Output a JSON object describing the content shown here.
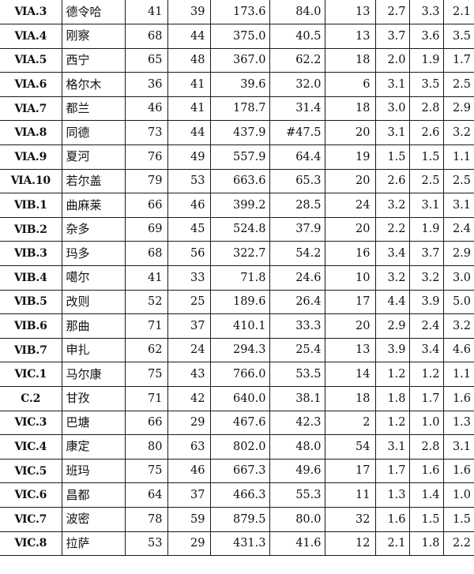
{
  "table": {
    "rows": [
      {
        "code": "ⅥA.3",
        "name": "德令哈",
        "a": "41",
        "b": "39",
        "c": "173.6",
        "d": "84.0",
        "e": "13",
        "f": "2.7",
        "g": "3.3",
        "h": "2.1"
      },
      {
        "code": "ⅥA.4",
        "name": "刚察",
        "a": "68",
        "b": "44",
        "c": "375.0",
        "d": "40.5",
        "e": "13",
        "f": "3.7",
        "g": "3.6",
        "h": "3.5"
      },
      {
        "code": "ⅥA.5",
        "name": "西宁",
        "a": "65",
        "b": "48",
        "c": "367.0",
        "d": "62.2",
        "e": "18",
        "f": "2.0",
        "g": "1.9",
        "h": "1.7"
      },
      {
        "code": "ⅥA.6",
        "name": "格尔木",
        "a": "36",
        "b": "41",
        "c": "39.6",
        "d": "32.0",
        "e": "6",
        "f": "3.1",
        "g": "3.5",
        "h": "2.5"
      },
      {
        "code": "ⅥA.7",
        "name": "都兰",
        "a": "46",
        "b": "41",
        "c": "178.7",
        "d": "31.4",
        "e": "18",
        "f": "3.0",
        "g": "2.8",
        "h": "2.9"
      },
      {
        "code": "ⅥA.8",
        "name": "同德",
        "a": "73",
        "b": "44",
        "c": "437.9",
        "d": "#47.5",
        "e": "20",
        "f": "3.1",
        "g": "2.6",
        "h": "3.2"
      },
      {
        "code": "ⅥA.9",
        "name": "夏河",
        "a": "76",
        "b": "49",
        "c": "557.9",
        "d": "64.4",
        "e": "19",
        "f": "1.5",
        "g": "1.5",
        "h": "1.1"
      },
      {
        "code": "ⅥA.10",
        "name": "若尔盖",
        "a": "79",
        "b": "53",
        "c": "663.6",
        "d": "65.3",
        "e": "20",
        "f": "2.6",
        "g": "2.5",
        "h": "2.5"
      },
      {
        "code": "ⅥB.1",
        "name": "曲麻莱",
        "a": "66",
        "b": "46",
        "c": "399.2",
        "d": "28.5",
        "e": "24",
        "f": "3.2",
        "g": "3.1",
        "h": "3.1"
      },
      {
        "code": "ⅥB.2",
        "name": "杂多",
        "a": "69",
        "b": "45",
        "c": "524.8",
        "d": "37.9",
        "e": "20",
        "f": "2.2",
        "g": "1.9",
        "h": "2.4"
      },
      {
        "code": "ⅥB.3",
        "name": "玛多",
        "a": "68",
        "b": "56",
        "c": "322.7",
        "d": "54.2",
        "e": "16",
        "f": "3.4",
        "g": "3.7",
        "h": "2.9"
      },
      {
        "code": "ⅥB.4",
        "name": "噶尔",
        "a": "41",
        "b": "33",
        "c": "71.8",
        "d": "24.6",
        "e": "10",
        "f": "3.2",
        "g": "3.2",
        "h": "3.0"
      },
      {
        "code": "ⅥB.5",
        "name": "改则",
        "a": "52",
        "b": "25",
        "c": "189.6",
        "d": "26.4",
        "e": "17",
        "f": "4.4",
        "g": "3.9",
        "h": "5.0"
      },
      {
        "code": "ⅥB.6",
        "name": "那曲",
        "a": "71",
        "b": "37",
        "c": "410.1",
        "d": "33.3",
        "e": "20",
        "f": "2.9",
        "g": "2.4",
        "h": "3.2"
      },
      {
        "code": "ⅥB.7",
        "name": "申扎",
        "a": "62",
        "b": "24",
        "c": "294.3",
        "d": "25.4",
        "e": "13",
        "f": "3.9",
        "g": "3.4",
        "h": "4.6"
      },
      {
        "code": "ⅥC.1",
        "name": "马尔康",
        "a": "75",
        "b": "43",
        "c": "766.0",
        "d": "53.5",
        "e": "14",
        "f": "1.2",
        "g": "1.2",
        "h": "1.1"
      },
      {
        "code": "C.2",
        "name": "甘孜",
        "a": "71",
        "b": "42",
        "c": "640.0",
        "d": "38.1",
        "e": "18",
        "f": "1.8",
        "g": "1.7",
        "h": "1.6"
      },
      {
        "code": "ⅥC.3",
        "name": "巴塘",
        "a": "66",
        "b": "29",
        "c": "467.6",
        "d": "42.3",
        "e": "2",
        "f": "1.2",
        "g": "1.0",
        "h": "1.3"
      },
      {
        "code": "ⅥC.4",
        "name": "康定",
        "a": "80",
        "b": "63",
        "c": "802.0",
        "d": "48.0",
        "e": "54",
        "f": "3.1",
        "g": "2.8",
        "h": "3.1"
      },
      {
        "code": "ⅥC.5",
        "name": "班玛",
        "a": "75",
        "b": "46",
        "c": "667.3",
        "d": "49.6",
        "e": "17",
        "f": "1.7",
        "g": "1.6",
        "h": "1.6"
      },
      {
        "code": "ⅥC.6",
        "name": "昌都",
        "a": "64",
        "b": "37",
        "c": "466.3",
        "d": "55.3",
        "e": "11",
        "f": "1.3",
        "g": "1.4",
        "h": "1.0"
      },
      {
        "code": "ⅥC.7",
        "name": "波密",
        "a": "78",
        "b": "59",
        "c": "879.5",
        "d": "80.0",
        "e": "32",
        "f": "1.6",
        "g": "1.5",
        "h": "1.5"
      },
      {
        "code": "ⅥC.8",
        "name": "拉萨",
        "a": "53",
        "b": "29",
        "c": "431.3",
        "d": "41.6",
        "e": "12",
        "f": "2.1",
        "g": "1.8",
        "h": "2.2"
      }
    ]
  }
}
